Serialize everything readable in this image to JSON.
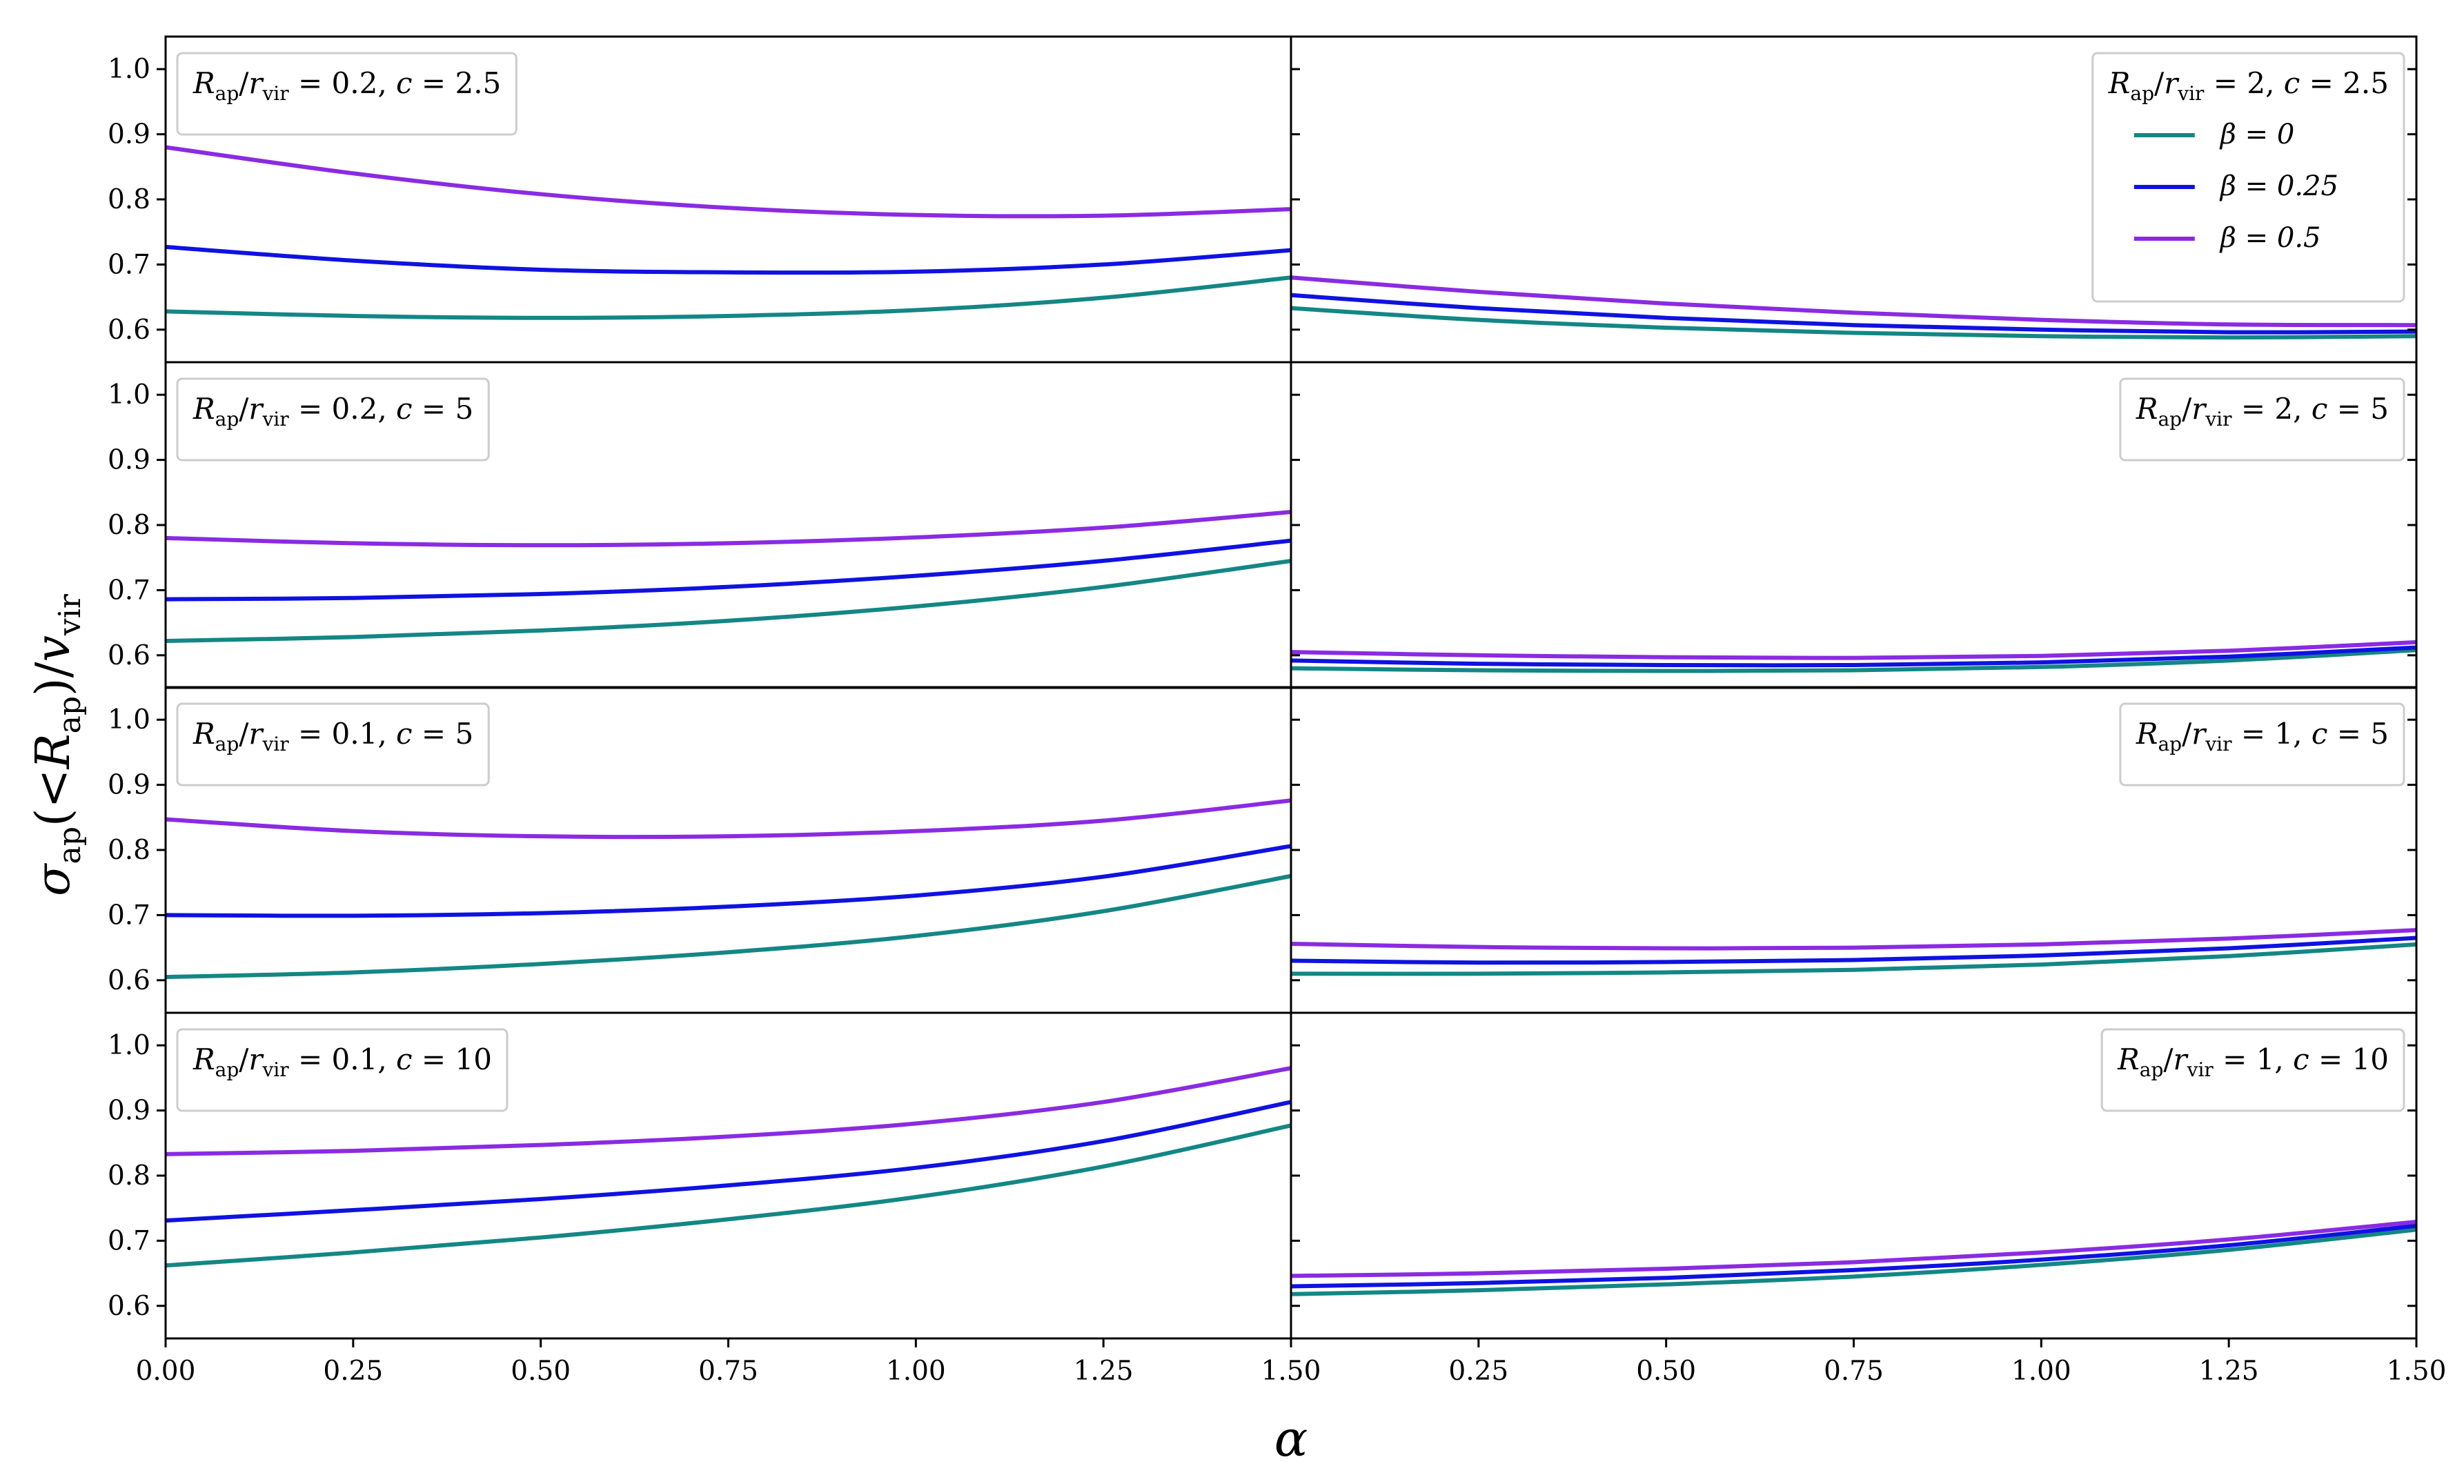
{
  "figure": {
    "xlabel": "α",
    "ylabel": "σap(<Rap)/vvir"
  },
  "colors": {
    "beta_0": "#138785",
    "beta_025": "#0f12e0",
    "beta_05": "#8a2be2"
  },
  "legend_entries": [
    "β = 0",
    "β = 0.25",
    "β = 0.5"
  ],
  "chart_data": [
    {
      "type": "line",
      "panel_label": "Rap/rvir = 0.2,  c = 2.5",
      "x": [
        0,
        0.25,
        0.5,
        0.75,
        1.0,
        1.25,
        1.5
      ],
      "series": [
        {
          "name": "β = 0",
          "values": [
            0.628,
            0.621,
            0.618,
            0.621,
            0.63,
            0.649,
            0.68
          ]
        },
        {
          "name": "β = 0.25",
          "values": [
            0.727,
            0.706,
            0.692,
            0.688,
            0.689,
            0.7,
            0.722
          ]
        },
        {
          "name": "β = 0.5",
          "values": [
            0.88,
            0.84,
            0.808,
            0.787,
            0.776,
            0.775,
            0.785
          ]
        }
      ],
      "xlim": [
        0,
        1.5
      ],
      "ylim": [
        0.55,
        1.05
      ]
    },
    {
      "type": "line",
      "panel_label": "Rap/rvir = 2,  c = 2.5",
      "x": [
        0,
        0.25,
        0.5,
        0.75,
        1.0,
        1.25,
        1.5
      ],
      "series": [
        {
          "name": "β = 0",
          "values": [
            0.633,
            0.615,
            0.603,
            0.595,
            0.59,
            0.588,
            0.59
          ]
        },
        {
          "name": "β = 0.25",
          "values": [
            0.653,
            0.633,
            0.618,
            0.607,
            0.6,
            0.596,
            0.597
          ]
        },
        {
          "name": "β = 0.5",
          "values": [
            0.68,
            0.658,
            0.64,
            0.626,
            0.615,
            0.608,
            0.607
          ]
        }
      ],
      "xlim": [
        0,
        1.5
      ],
      "ylim": [
        0.55,
        1.05
      ]
    },
    {
      "type": "line",
      "panel_label": "Rap/rvir = 0.2,  c = 5",
      "x": [
        0,
        0.25,
        0.5,
        0.75,
        1.0,
        1.25,
        1.5
      ],
      "series": [
        {
          "name": "β = 0",
          "values": [
            0.622,
            0.628,
            0.638,
            0.653,
            0.675,
            0.705,
            0.745
          ]
        },
        {
          "name": "β = 0.25",
          "values": [
            0.686,
            0.688,
            0.694,
            0.705,
            0.722,
            0.745,
            0.776
          ]
        },
        {
          "name": "β = 0.5",
          "values": [
            0.78,
            0.772,
            0.769,
            0.772,
            0.781,
            0.796,
            0.82
          ]
        }
      ],
      "xlim": [
        0,
        1.5
      ],
      "ylim": [
        0.55,
        1.05
      ]
    },
    {
      "type": "line",
      "panel_label": "Rap/rvir = 2,  c = 5",
      "x": [
        0,
        0.25,
        0.5,
        0.75,
        1.0,
        1.25,
        1.5
      ],
      "series": [
        {
          "name": "β = 0",
          "values": [
            0.58,
            0.577,
            0.576,
            0.577,
            0.582,
            0.592,
            0.608
          ]
        },
        {
          "name": "β = 0.25",
          "values": [
            0.592,
            0.587,
            0.585,
            0.585,
            0.589,
            0.598,
            0.612
          ]
        },
        {
          "name": "β = 0.5",
          "values": [
            0.605,
            0.6,
            0.597,
            0.596,
            0.599,
            0.607,
            0.62
          ]
        }
      ],
      "xlim": [
        0,
        1.5
      ],
      "ylim": [
        0.55,
        1.05
      ]
    },
    {
      "type": "line",
      "panel_label": "Rap/rvir = 0.1,  c = 5",
      "x": [
        0,
        0.25,
        0.5,
        0.75,
        1.0,
        1.25,
        1.5
      ],
      "series": [
        {
          "name": "β = 0",
          "values": [
            0.605,
            0.612,
            0.625,
            0.643,
            0.668,
            0.706,
            0.76
          ]
        },
        {
          "name": "β = 0.25",
          "values": [
            0.7,
            0.699,
            0.703,
            0.713,
            0.73,
            0.759,
            0.806
          ]
        },
        {
          "name": "β = 0.5",
          "values": [
            0.847,
            0.829,
            0.821,
            0.821,
            0.829,
            0.845,
            0.876
          ]
        }
      ],
      "xlim": [
        0,
        1.5
      ],
      "ylim": [
        0.55,
        1.05
      ]
    },
    {
      "type": "line",
      "panel_label": "Rap/rvir = 1,  c = 5",
      "x": [
        0,
        0.25,
        0.5,
        0.75,
        1.0,
        1.25,
        1.5
      ],
      "series": [
        {
          "name": "β = 0",
          "values": [
            0.61,
            0.61,
            0.612,
            0.616,
            0.624,
            0.637,
            0.655
          ]
        },
        {
          "name": "β = 0.25",
          "values": [
            0.63,
            0.627,
            0.628,
            0.631,
            0.638,
            0.649,
            0.665
          ]
        },
        {
          "name": "β = 0.5",
          "values": [
            0.656,
            0.651,
            0.649,
            0.65,
            0.655,
            0.664,
            0.677
          ]
        }
      ],
      "xlim": [
        0,
        1.5
      ],
      "ylim": [
        0.55,
        1.05
      ]
    },
    {
      "type": "line",
      "panel_label": "Rap/rvir = 0.1,  c = 10",
      "x": [
        0,
        0.25,
        0.5,
        0.75,
        1.0,
        1.25,
        1.5
      ],
      "series": [
        {
          "name": "β = 0",
          "values": [
            0.662,
            0.682,
            0.705,
            0.733,
            0.767,
            0.814,
            0.877
          ]
        },
        {
          "name": "β = 0.25",
          "values": [
            0.731,
            0.747,
            0.764,
            0.785,
            0.812,
            0.853,
            0.913
          ]
        },
        {
          "name": "β = 0.5",
          "values": [
            0.833,
            0.838,
            0.847,
            0.86,
            0.88,
            0.913,
            0.965
          ]
        }
      ],
      "xlim": [
        0,
        1.5
      ],
      "ylim": [
        0.55,
        1.05
      ]
    },
    {
      "type": "line",
      "panel_label": "Rap/rvir = 1,  c = 10",
      "x": [
        0,
        0.25,
        0.5,
        0.75,
        1.0,
        1.25,
        1.5
      ],
      "series": [
        {
          "name": "β = 0",
          "values": [
            0.618,
            0.624,
            0.633,
            0.645,
            0.663,
            0.686,
            0.717
          ]
        },
        {
          "name": "β = 0.25",
          "values": [
            0.63,
            0.635,
            0.643,
            0.655,
            0.671,
            0.693,
            0.723
          ]
        },
        {
          "name": "β = 0.5",
          "values": [
            0.646,
            0.65,
            0.657,
            0.667,
            0.682,
            0.702,
            0.729
          ]
        }
      ],
      "xlim": [
        0,
        1.5
      ],
      "ylim": [
        0.55,
        1.05
      ]
    }
  ],
  "tick_labels": {
    "y": [
      "0.6",
      "0.7",
      "0.8",
      "0.9",
      "1.0"
    ],
    "x_left": [
      "0.00",
      "0.25",
      "0.50",
      "0.75",
      "1.00",
      "1.25",
      "1.50"
    ],
    "x_right": [
      "0.25",
      "0.50",
      "0.75",
      "1.00",
      "1.25",
      "1.50"
    ]
  }
}
